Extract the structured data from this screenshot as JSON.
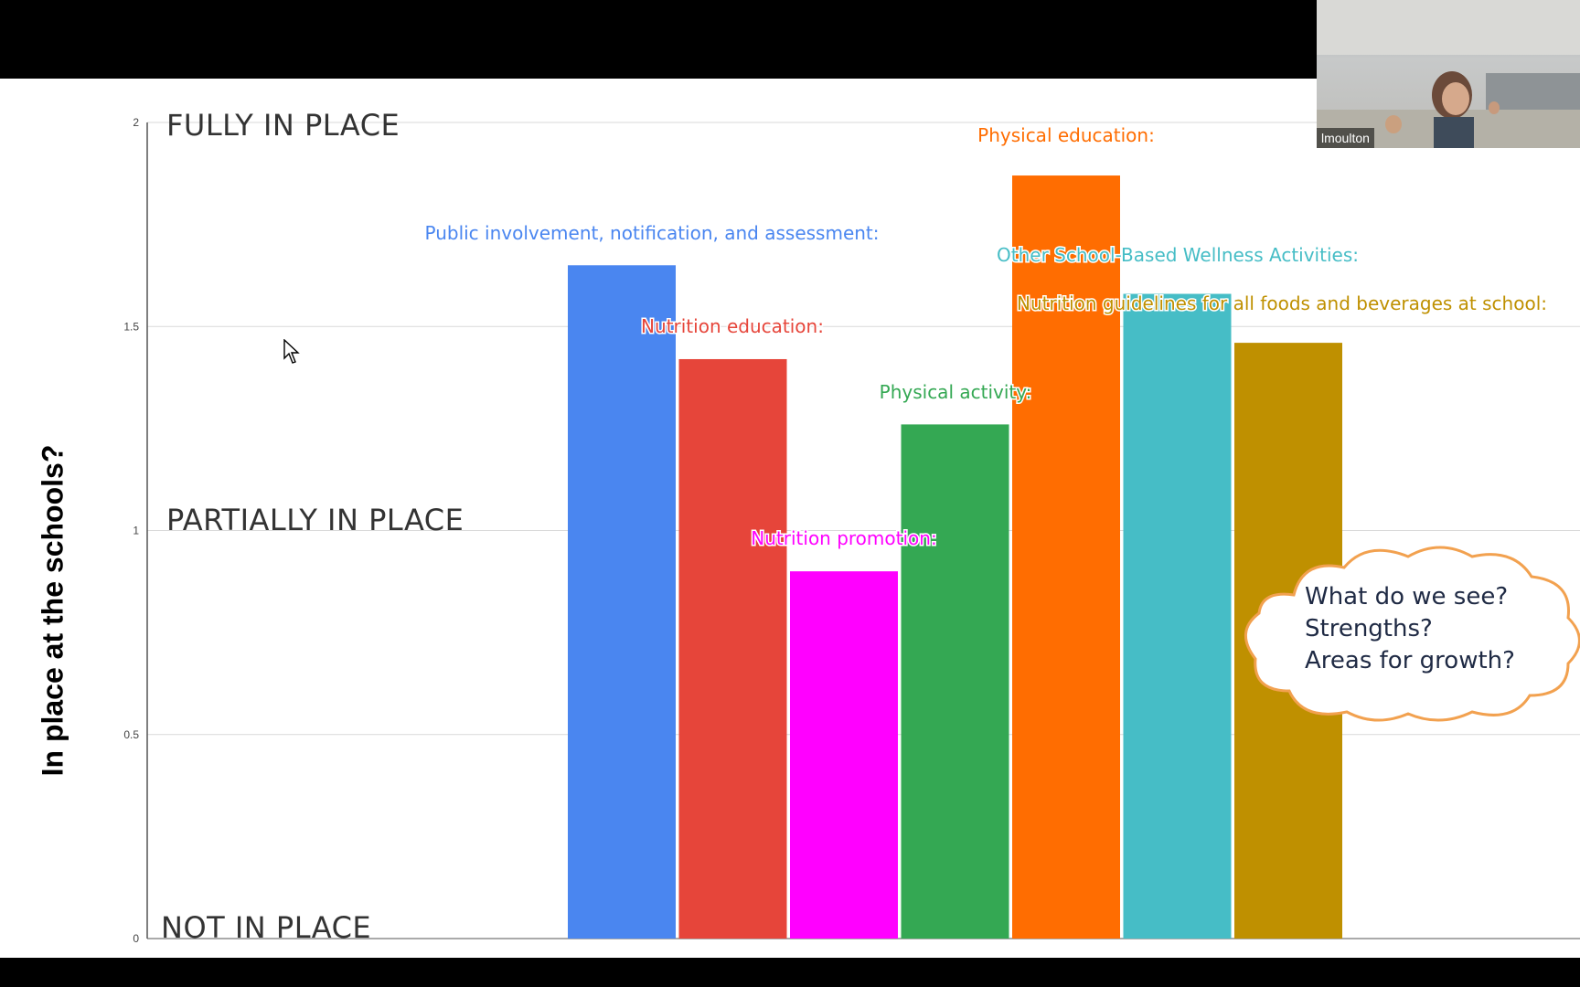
{
  "chart_data": {
    "type": "bar",
    "ylabel": "In place at the schools?",
    "ylim": [
      0,
      2
    ],
    "yticks": [
      "0",
      "0.5",
      "1",
      "1.5",
      "2"
    ],
    "grid": true,
    "level_labels": [
      "FULLY IN PLACE",
      "PARTIALLY IN PLACE",
      "NOT IN PLACE"
    ],
    "series": [
      {
        "name": "Public involvement, notification, and assessment:",
        "value": 1.65,
        "color": "#4a86f0"
      },
      {
        "name": "Nutrition education:",
        "value": 1.42,
        "color": "#e6453a"
      },
      {
        "name": "Nutrition promotion:",
        "value": 0.9,
        "color": "#ff00ff"
      },
      {
        "name": "Physical activity:",
        "value": 1.26,
        "color": "#34a853"
      },
      {
        "name": "Physical education:",
        "value": 1.87,
        "color": "#ff6d01"
      },
      {
        "name": "Other School-Based Wellness Activities:",
        "value": 1.58,
        "color": "#46bdc6"
      },
      {
        "name": "Nutrition guidelines for all foods and beverages at school:",
        "value": 1.46,
        "color": "#bf9000"
      }
    ]
  },
  "thought_bubble": {
    "lines": [
      "What do we see?",
      "Strengths?",
      "Areas for growth?"
    ],
    "color": "#f2a14f"
  },
  "video": {
    "participant_name": "lmoulton"
  }
}
